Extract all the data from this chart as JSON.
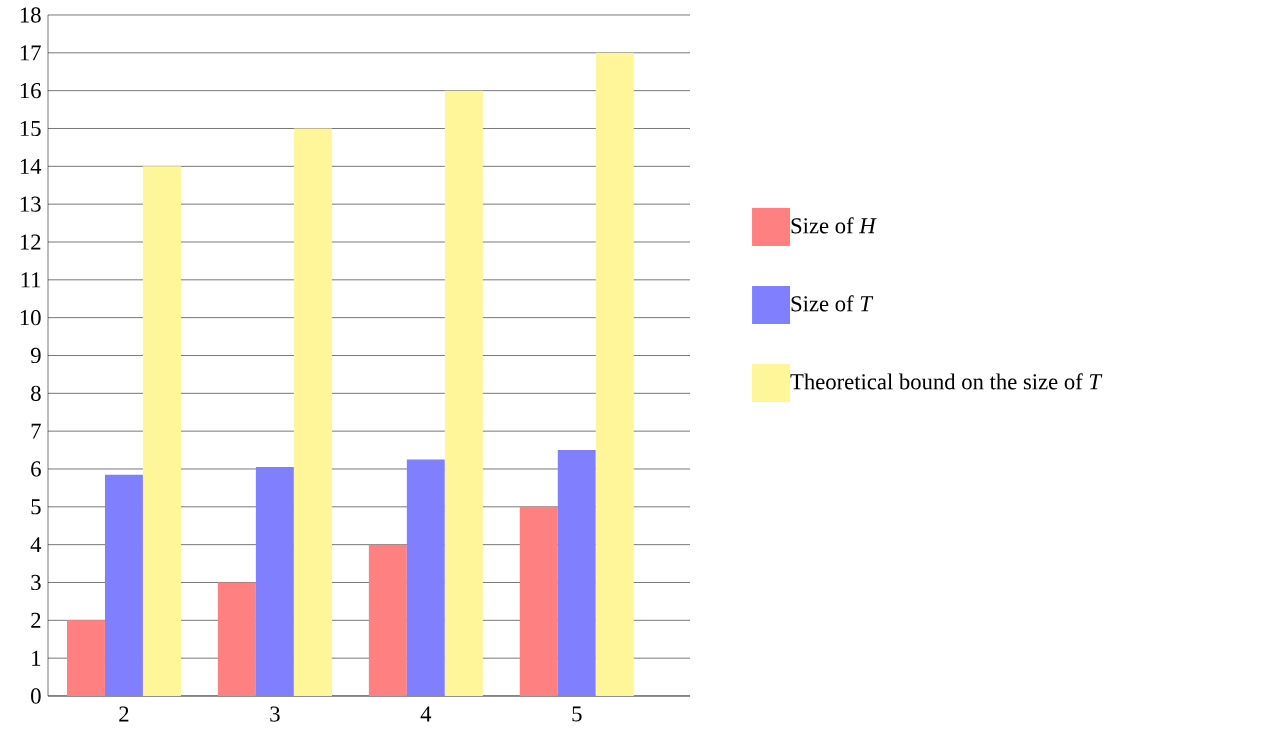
{
  "chart_data": {
    "type": "bar",
    "categories": [
      "2",
      "3",
      "4",
      "5"
    ],
    "series": [
      {
        "name": "Size of *H*",
        "color": "#ff8080",
        "values": [
          2,
          3,
          4,
          5
        ]
      },
      {
        "name": "Size of *T*",
        "color": "#8080ff",
        "values": [
          5.85,
          6.05,
          6.25,
          6.5
        ]
      },
      {
        "name": "Theoretical bound on the size of *T*",
        "color": "#fff599",
        "values": [
          14,
          15,
          16,
          17
        ]
      }
    ],
    "ylim": [
      0,
      18
    ],
    "yticks": [
      0,
      1,
      2,
      3,
      4,
      5,
      6,
      7,
      8,
      9,
      10,
      11,
      12,
      13,
      14,
      15,
      16,
      17,
      18
    ],
    "grid": "y",
    "legend": "right"
  }
}
